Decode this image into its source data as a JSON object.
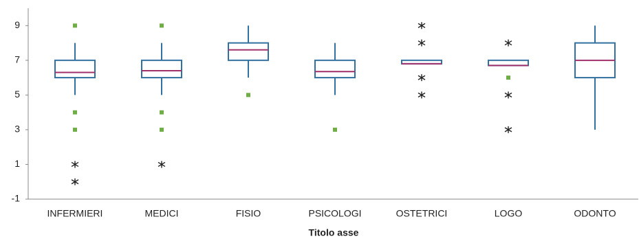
{
  "chart_data": {
    "type": "box",
    "categories": [
      "INFERMIERI",
      "MEDICI",
      "FISIO",
      "PSICOLOGI",
      "OSTETRICI",
      "LOGO",
      "ODONTO"
    ],
    "boxes": [
      {
        "whisker_low": 5,
        "q1": 6,
        "median": 6.3,
        "q3": 7,
        "whisker_high": 8,
        "outliers": [
          9,
          4,
          3
        ],
        "extremes": [
          1,
          0
        ]
      },
      {
        "whisker_low": 5,
        "q1": 6,
        "median": 6.4,
        "q3": 7,
        "whisker_high": 8,
        "outliers": [
          9,
          4,
          3
        ],
        "extremes": [
          1
        ]
      },
      {
        "whisker_low": 6,
        "q1": 7,
        "median": 7.6,
        "q3": 8,
        "whisker_high": 9,
        "outliers": [
          5
        ],
        "extremes": []
      },
      {
        "whisker_low": 5,
        "q1": 6,
        "median": 6.35,
        "q3": 7,
        "whisker_high": 8,
        "outliers": [
          3
        ],
        "extremes": []
      },
      {
        "whisker_low": 6.8,
        "q1": 6.8,
        "median": 6.8,
        "q3": 7,
        "whisker_high": 7,
        "outliers": [],
        "extremes": [
          9,
          8,
          6,
          5
        ]
      },
      {
        "whisker_low": 6.7,
        "q1": 6.7,
        "median": 6.7,
        "q3": 7,
        "whisker_high": 7,
        "outliers": [
          6
        ],
        "extremes": [
          8,
          5,
          3
        ]
      },
      {
        "whisker_low": 3,
        "q1": 6,
        "median": 7,
        "q3": 8,
        "whisker_high": 9,
        "outliers": [],
        "extremes": []
      }
    ],
    "xlabel": "Titolo asse",
    "ylim": [
      -1,
      10
    ],
    "yticks": [
      -1,
      1,
      3,
      5,
      7,
      9
    ],
    "box_color": "#31709f",
    "median_color": "#a0306a",
    "outlier_color": "#70ad47",
    "extreme_color": "#222222"
  }
}
